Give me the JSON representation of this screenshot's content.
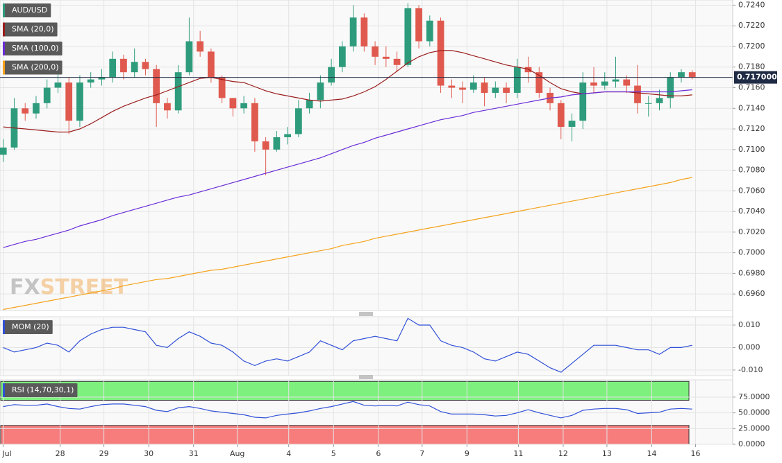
{
  "chart_data": [
    {
      "type": "candlestick",
      "ylim": [
        0.6944,
        0.7245
      ],
      "yticks": [
        {
          "value": 0.724,
          "label": "0.7240"
        },
        {
          "value": 0.722,
          "label": "0.7220"
        },
        {
          "value": 0.72,
          "label": "0.7200"
        },
        {
          "value": 0.718,
          "label": "0.7180"
        },
        {
          "value": 0.716,
          "label": "0.7160"
        },
        {
          "value": 0.714,
          "label": "0.7140"
        },
        {
          "value": 0.712,
          "label": "0.7120"
        },
        {
          "value": 0.71,
          "label": "0.7100"
        },
        {
          "value": 0.708,
          "label": "0.7080"
        },
        {
          "value": 0.706,
          "label": "0.7060"
        },
        {
          "value": 0.704,
          "label": "0.7040"
        },
        {
          "value": 0.702,
          "label": "0.7020"
        },
        {
          "value": 0.7,
          "label": "0.7000"
        },
        {
          "value": 0.698,
          "label": "0.6980"
        },
        {
          "value": 0.696,
          "label": "0.6960"
        }
      ],
      "grid": true,
      "last_price": {
        "value": 0.717,
        "label": "0.717000"
      },
      "watermark": [
        "FX",
        "STREET"
      ],
      "series": [
        {
          "name": "AUD/USD",
          "color": "#2e9c7c",
          "up_color": "#2e9c7c",
          "down_color": "#e0594e",
          "open": [
            0.7095,
            0.7102,
            0.714,
            0.7135,
            0.7145,
            0.716,
            0.7165,
            0.7128,
            0.7165,
            0.7168,
            0.717,
            0.7188,
            0.7175,
            0.7185,
            0.7178,
            0.7145,
            0.7138,
            0.7175,
            0.7205,
            0.7195,
            0.717,
            0.715,
            0.714,
            0.7145,
            0.7108,
            0.71,
            0.7112,
            0.7115,
            0.714,
            0.7148,
            0.7165,
            0.718,
            0.72,
            0.7228,
            0.72,
            0.719,
            0.7188,
            0.7182,
            0.7237,
            0.7205,
            0.7225,
            0.7162,
            0.716,
            0.7158,
            0.7165,
            0.7155,
            0.716,
            0.7155,
            0.718,
            0.7175,
            0.7155,
            0.7145,
            0.7122,
            0.7128,
            0.7165,
            0.7162,
            0.7166,
            0.7168,
            0.7162,
            0.7145,
            0.7145,
            0.715,
            0.717,
            0.7175
          ],
          "high": [
            0.711,
            0.715,
            0.7145,
            0.7152,
            0.7168,
            0.718,
            0.717,
            0.7172,
            0.7175,
            0.7178,
            0.7195,
            0.7192,
            0.7198,
            0.7188,
            0.7182,
            0.715,
            0.7182,
            0.7228,
            0.7215,
            0.7198,
            0.7172,
            0.715,
            0.7152,
            0.715,
            0.7112,
            0.7118,
            0.7122,
            0.7148,
            0.7155,
            0.7172,
            0.7188,
            0.7205,
            0.724,
            0.7232,
            0.7205,
            0.72,
            0.7195,
            0.7242,
            0.724,
            0.723,
            0.7228,
            0.7168,
            0.7166,
            0.7172,
            0.717,
            0.7166,
            0.7165,
            0.7188,
            0.719,
            0.718,
            0.716,
            0.7148,
            0.7135,
            0.7175,
            0.718,
            0.7175,
            0.719,
            0.7172,
            0.7182,
            0.7152,
            0.7158,
            0.7175,
            0.7178,
            0.7177
          ],
          "low": [
            0.7088,
            0.71,
            0.7128,
            0.713,
            0.714,
            0.7155,
            0.7115,
            0.7122,
            0.716,
            0.7162,
            0.7165,
            0.7168,
            0.717,
            0.7172,
            0.7122,
            0.713,
            0.7135,
            0.7172,
            0.719,
            0.7165,
            0.7145,
            0.7132,
            0.7135,
            0.7098,
            0.7075,
            0.7098,
            0.7105,
            0.7112,
            0.7135,
            0.714,
            0.7162,
            0.7175,
            0.7195,
            0.7195,
            0.7182,
            0.718,
            0.7175,
            0.718,
            0.7198,
            0.72,
            0.7155,
            0.715,
            0.7145,
            0.7155,
            0.7142,
            0.715,
            0.7145,
            0.715,
            0.7165,
            0.715,
            0.7138,
            0.711,
            0.7108,
            0.712,
            0.7155,
            0.7158,
            0.716,
            0.7155,
            0.7135,
            0.7132,
            0.7138,
            0.714,
            0.7165,
            0.7168
          ],
          "close": [
            0.7102,
            0.714,
            0.7135,
            0.7145,
            0.716,
            0.7165,
            0.7128,
            0.7165,
            0.7168,
            0.717,
            0.7188,
            0.7175,
            0.7185,
            0.7178,
            0.7145,
            0.7138,
            0.7175,
            0.7205,
            0.7195,
            0.717,
            0.715,
            0.714,
            0.7145,
            0.7108,
            0.71,
            0.7112,
            0.7115,
            0.714,
            0.7148,
            0.7165,
            0.718,
            0.72,
            0.7228,
            0.72,
            0.719,
            0.7188,
            0.7182,
            0.7237,
            0.7205,
            0.7225,
            0.7162,
            0.716,
            0.7158,
            0.7165,
            0.7155,
            0.716,
            0.7155,
            0.718,
            0.7175,
            0.7155,
            0.7145,
            0.7122,
            0.7128,
            0.7165,
            0.7162,
            0.7166,
            0.7168,
            0.7162,
            0.7145,
            0.7145,
            0.715,
            0.717,
            0.7175,
            0.717
          ]
        },
        {
          "name": "SMA (20,0)",
          "color": "#9b1c1c",
          "values": [
            0.7122,
            0.7121,
            0.712,
            0.7119,
            0.7118,
            0.7117,
            0.7117,
            0.712,
            0.7125,
            0.7131,
            0.7137,
            0.7142,
            0.7146,
            0.715,
            0.7153,
            0.7157,
            0.7161,
            0.7165,
            0.7169,
            0.717,
            0.7168,
            0.7166,
            0.7165,
            0.7161,
            0.7157,
            0.7154,
            0.7152,
            0.715,
            0.7148,
            0.7147,
            0.7148,
            0.7149,
            0.7152,
            0.7156,
            0.7161,
            0.7168,
            0.7176,
            0.7184,
            0.719,
            0.7194,
            0.7196,
            0.7196,
            0.7194,
            0.7191,
            0.7188,
            0.7185,
            0.7182,
            0.718,
            0.7178,
            0.7172,
            0.7165,
            0.7159,
            0.7156,
            0.7154,
            0.7155,
            0.7156,
            0.7156,
            0.7156,
            0.7155,
            0.7154,
            0.7153,
            0.7152,
            0.7152,
            0.7153
          ]
        },
        {
          "name": "SMA (100,0)",
          "color": "#6a2cd8",
          "values": [
            0.7005,
            0.7008,
            0.7011,
            0.7013,
            0.7016,
            0.7019,
            0.7022,
            0.7026,
            0.7029,
            0.7032,
            0.7036,
            0.7039,
            0.7042,
            0.7045,
            0.7048,
            0.7051,
            0.7054,
            0.7056,
            0.7059,
            0.7062,
            0.7065,
            0.7068,
            0.7071,
            0.7074,
            0.7077,
            0.708,
            0.7083,
            0.7086,
            0.7089,
            0.7092,
            0.7096,
            0.71,
            0.7104,
            0.7107,
            0.7111,
            0.7114,
            0.7117,
            0.712,
            0.7123,
            0.7126,
            0.7129,
            0.7131,
            0.7133,
            0.7136,
            0.7138,
            0.714,
            0.7142,
            0.7144,
            0.7146,
            0.7148,
            0.715,
            0.7151,
            0.7153,
            0.7154,
            0.7155,
            0.7156,
            0.7156,
            0.7156,
            0.7156,
            0.7156,
            0.7156,
            0.7156,
            0.7157,
            0.7158
          ]
        },
        {
          "name": "SMA (200,0)",
          "color": "#f5a21b",
          "values": [
            0.6945,
            0.6947,
            0.6949,
            0.6951,
            0.6953,
            0.6955,
            0.6957,
            0.6959,
            0.6961,
            0.6963,
            0.6965,
            0.6968,
            0.697,
            0.6972,
            0.6974,
            0.6975,
            0.6977,
            0.6979,
            0.6981,
            0.6983,
            0.6984,
            0.6986,
            0.6988,
            0.699,
            0.6992,
            0.6994,
            0.6996,
            0.6998,
            0.7,
            0.7002,
            0.7004,
            0.7007,
            0.7009,
            0.7011,
            0.7014,
            0.7016,
            0.7018,
            0.702,
            0.7022,
            0.7024,
            0.7026,
            0.7028,
            0.703,
            0.7032,
            0.7034,
            0.7036,
            0.7038,
            0.704,
            0.7042,
            0.7044,
            0.7046,
            0.7048,
            0.705,
            0.7052,
            0.7054,
            0.7056,
            0.7058,
            0.706,
            0.7062,
            0.7064,
            0.7066,
            0.7068,
            0.7071,
            0.7073
          ]
        }
      ]
    },
    {
      "type": "line",
      "ylim": [
        -0.0125,
        0.0137
      ],
      "yticks": [
        {
          "value": 0.01,
          "label": "0.010"
        },
        {
          "value": 0,
          "label": "0.000"
        },
        {
          "value": -0.01,
          "label": "-0.010"
        }
      ],
      "grid": true,
      "series": [
        {
          "name": "MOM (20)",
          "color": "#2f4fd8",
          "values": [
            0,
            -0.002,
            -0.001,
            0,
            0.002,
            0.001,
            -0.002,
            0.003,
            0.006,
            0.008,
            0.009,
            0.009,
            0.008,
            0.007,
            0.001,
            0,
            0.004,
            0.007,
            0.005,
            0.002,
            0.001,
            -0.002,
            -0.006,
            -0.008,
            -0.006,
            -0.005,
            -0.006,
            -0.004,
            -0.002,
            0.003,
            0.001,
            -0.001,
            0.003,
            0.004,
            0.005,
            0.004,
            0.003,
            0.013,
            0.01,
            0.01,
            0.003,
            0.001,
            0,
            -0.002,
            -0.005,
            -0.006,
            -0.004,
            -0.002,
            -0.003,
            -0.006,
            -0.009,
            -0.011,
            -0.007,
            -0.003,
            0.001,
            0.001,
            0.001,
            0,
            -0.001,
            -0.001,
            -0.003,
            0,
            0,
            0.001
          ]
        }
      ]
    },
    {
      "type": "line",
      "ylim": [
        0,
        102.5
      ],
      "yticks": [
        {
          "value": 75,
          "label": "75.0000"
        },
        {
          "value": 50,
          "label": "50.0000"
        },
        {
          "value": 25,
          "label": "25.0000"
        },
        {
          "value": 0,
          "label": "0.0000"
        }
      ],
      "grid": true,
      "zones": [
        {
          "range": [
            70,
            100
          ],
          "color": "#7ef07e"
        },
        {
          "range": [
            0,
            30
          ],
          "color": "#f77d7d"
        }
      ],
      "xlim": [
        -0.3,
        66.7
      ],
      "xticks": [
        {
          "value": 0,
          "label": "Jul"
        },
        {
          "value": 5.2,
          "label": "28"
        },
        {
          "value": 9.2,
          "label": "29"
        },
        {
          "value": 13.3,
          "label": "30"
        },
        {
          "value": 17.4,
          "label": "31"
        },
        {
          "value": 21.4,
          "label": "Aug"
        },
        {
          "value": 26.1,
          "label": "4"
        },
        {
          "value": 30.2,
          "label": "5"
        },
        {
          "value": 34.3,
          "label": "6"
        },
        {
          "value": 38.3,
          "label": "7"
        },
        {
          "value": 42.4,
          "label": "9"
        },
        {
          "value": 47.1,
          "label": "11"
        },
        {
          "value": 51.2,
          "label": "12"
        },
        {
          "value": 55.2,
          "label": "13"
        },
        {
          "value": 59.3,
          "label": "14"
        },
        {
          "value": 63.3,
          "label": "16"
        }
      ],
      "series": [
        {
          "name": "RSI (14,70,30,1)",
          "color": "#2f4fd8",
          "values": [
            60,
            63,
            62,
            62,
            64,
            60,
            57,
            56,
            60,
            63,
            64,
            64,
            62,
            60,
            54,
            52,
            58,
            60,
            57,
            53,
            51,
            49,
            47,
            43,
            42,
            46,
            48,
            50,
            53,
            57,
            60,
            64,
            68,
            62,
            61,
            62,
            61,
            67,
            63,
            61,
            52,
            48,
            48,
            48,
            47,
            45,
            46,
            50,
            55,
            50,
            46,
            42,
            46,
            54,
            56,
            57,
            57,
            55,
            49,
            50,
            51,
            56,
            57,
            56
          ]
        }
      ]
    }
  ]
}
